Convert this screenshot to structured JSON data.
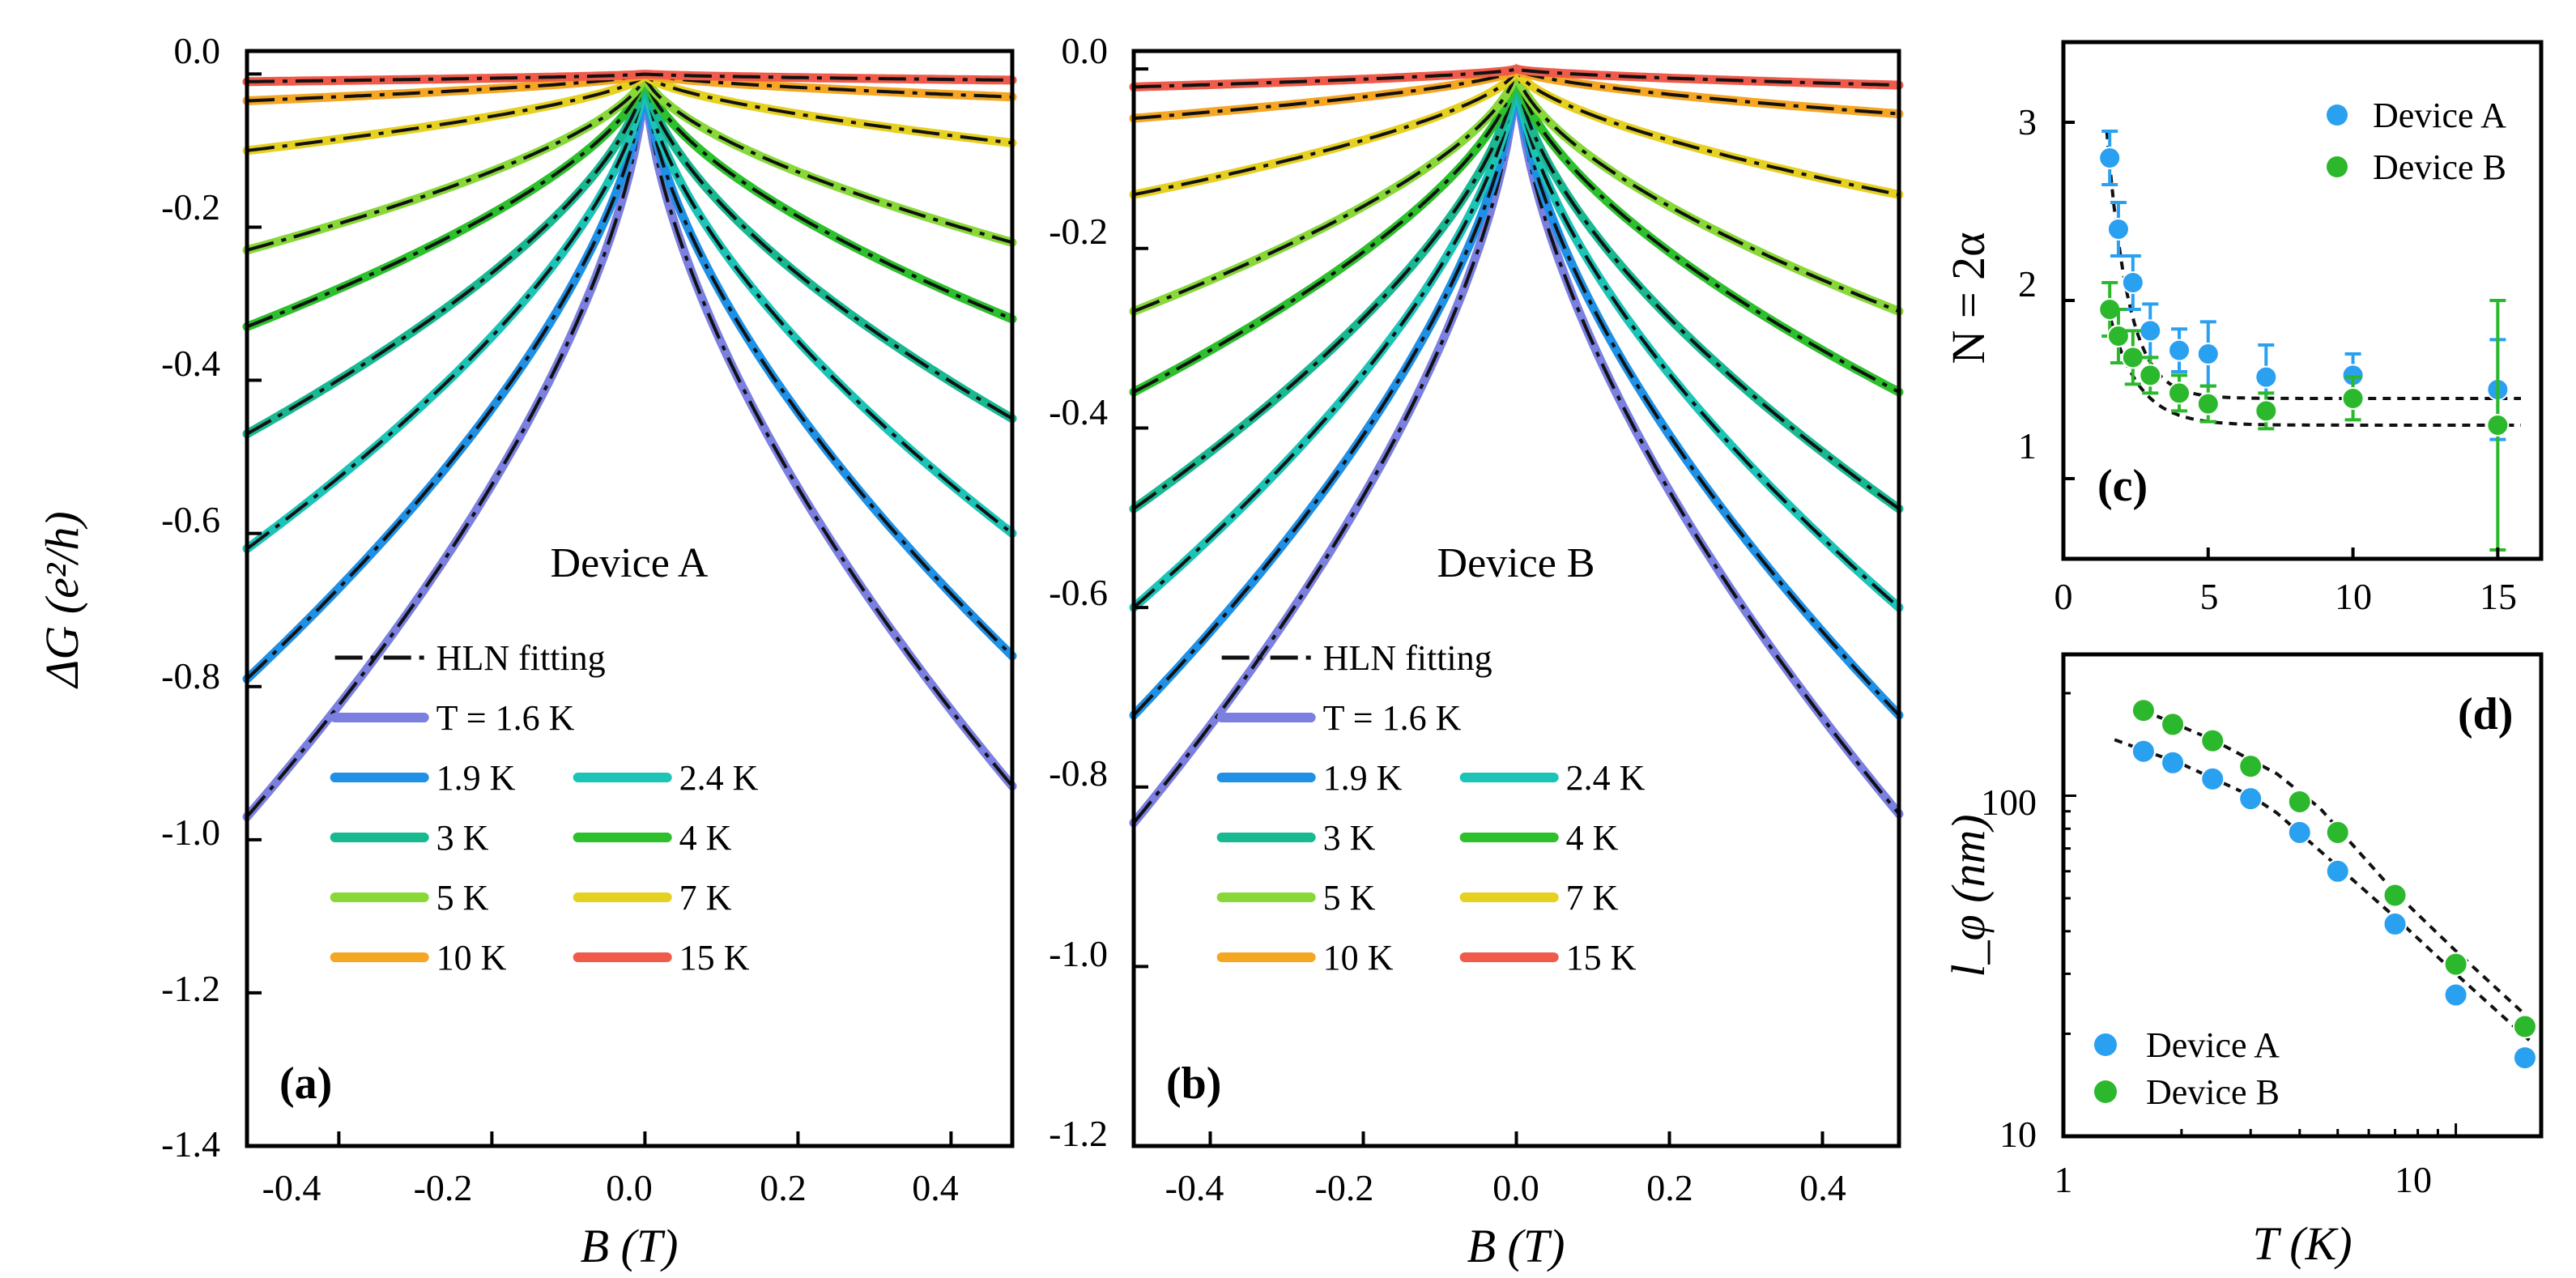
{
  "chart_data": [
    {
      "panel": "(a)",
      "type": "line",
      "annotation": "Device A",
      "xlabel": "B (T)",
      "ylabel": "ΔG (e²/h)",
      "xlim": [
        -0.52,
        0.48
      ],
      "ylim": [
        -1.4,
        0.03
      ],
      "xticks": [
        "-0.4",
        "-0.2",
        "0.0",
        "0.2",
        "0.4"
      ],
      "xtick_values": [
        -0.4,
        -0.2,
        0.0,
        0.2,
        0.4
      ],
      "yticks": [
        "0.0",
        "-0.2",
        "-0.4",
        "-0.6",
        "-0.8",
        "-1.0",
        "-1.2",
        "-1.4"
      ],
      "ytick_values": [
        0.0,
        -0.2,
        -0.4,
        -0.6,
        -0.8,
        -1.0,
        -1.2,
        -1.4
      ],
      "fit_label": "HLN fitting",
      "series": [
        {
          "name": "T = 1.6 K",
          "color": "#7b7fe0",
          "left": -0.97,
          "right": -0.93
        },
        {
          "name": "1.9 K",
          "color": "#1e90e6",
          "left": -0.79,
          "right": -0.76
        },
        {
          "name": "2.4 K",
          "color": "#1cc4b8",
          "left": -0.62,
          "right": -0.6
        },
        {
          "name": "3 K",
          "color": "#18b890",
          "left": -0.47,
          "right": -0.45
        },
        {
          "name": "4 K",
          "color": "#2cc02c",
          "left": -0.33,
          "right": -0.32
        },
        {
          "name": "5 K",
          "color": "#88d838",
          "left": -0.23,
          "right": -0.22
        },
        {
          "name": "7 K",
          "color": "#e6d020",
          "left": -0.1,
          "right": -0.09
        },
        {
          "name": "10 K",
          "color": "#f5a623",
          "left": -0.035,
          "right": -0.03
        },
        {
          "name": "15 K",
          "color": "#f05a4a",
          "left": -0.01,
          "right": -0.008
        }
      ]
    },
    {
      "panel": "(b)",
      "type": "line",
      "annotation": "Device B",
      "xlabel": "B (T)",
      "ylabel": "",
      "xlim": [
        -0.5,
        0.5
      ],
      "ylim": [
        -1.2,
        0.02
      ],
      "xticks": [
        "-0.4",
        "-0.2",
        "0.0",
        "0.2",
        "0.4"
      ],
      "xtick_values": [
        -0.4,
        -0.2,
        0.0,
        0.2,
        0.4
      ],
      "yticks": [
        "0.0",
        "-0.2",
        "-0.4",
        "-0.6",
        "-0.8",
        "-1.0",
        "-1.2"
      ],
      "ytick_values": [
        0.0,
        -0.2,
        -0.4,
        -0.6,
        -0.8,
        -1.0,
        -1.2
      ],
      "fit_label": "HLN fitting",
      "series": [
        {
          "name": "T = 1.6 K",
          "color": "#7b7fe0",
          "left": -0.84,
          "right": -0.83
        },
        {
          "name": "1.9 K",
          "color": "#1e90e6",
          "left": -0.72,
          "right": -0.72
        },
        {
          "name": "2.4 K",
          "color": "#1cc4b8",
          "left": -0.6,
          "right": -0.6
        },
        {
          "name": "3 K",
          "color": "#18b890",
          "left": -0.49,
          "right": -0.49
        },
        {
          "name": "4 K",
          "color": "#2cc02c",
          "left": -0.36,
          "right": -0.36
        },
        {
          "name": "5 K",
          "color": "#88d838",
          "left": -0.27,
          "right": -0.27
        },
        {
          "name": "7 K",
          "color": "#e6d020",
          "left": -0.14,
          "right": -0.14
        },
        {
          "name": "10 K",
          "color": "#f5a623",
          "left": -0.055,
          "right": -0.05
        },
        {
          "name": "15 K",
          "color": "#f05a4a",
          "left": -0.02,
          "right": -0.018
        }
      ]
    },
    {
      "panel": "(c)",
      "type": "scatter",
      "xlabel": "",
      "ylabel": "N = 2α",
      "xlim": [
        0,
        16.5
      ],
      "ylim": [
        0.55,
        3.45
      ],
      "xticks": [
        "0",
        "5",
        "10",
        "15"
      ],
      "xtick_values": [
        0,
        5,
        10,
        15
      ],
      "yticks": [
        "1",
        "2",
        "3"
      ],
      "ytick_values": [
        1,
        2,
        3
      ],
      "series": [
        {
          "name": "Device A",
          "color": "#2aa0f0",
          "x": [
            1.6,
            1.9,
            2.4,
            3,
            4,
            5,
            7,
            10,
            15
          ],
          "y": [
            2.8,
            2.4,
            2.1,
            1.83,
            1.72,
            1.7,
            1.57,
            1.58,
            1.5
          ],
          "err": [
            0.15,
            0.15,
            0.15,
            0.15,
            0.12,
            0.18,
            0.18,
            0.12,
            0.28
          ]
        },
        {
          "name": "Device B",
          "color": "#2cb82c",
          "x": [
            1.6,
            1.9,
            2.4,
            3,
            4,
            5,
            7,
            10,
            15
          ],
          "y": [
            1.95,
            1.8,
            1.68,
            1.58,
            1.48,
            1.42,
            1.38,
            1.45,
            1.3
          ],
          "err": [
            0.15,
            0.15,
            0.15,
            0.1,
            0.1,
            0.1,
            0.1,
            0.12,
            0.7
          ]
        }
      ],
      "fits": [
        {
          "a": 1.45,
          "b": 1.5,
          "t0": 0.75
        },
        {
          "a": 1.3,
          "b": 0.68,
          "t0": 1.0
        }
      ]
    },
    {
      "panel": "(d)",
      "type": "scatter",
      "xscale": "log",
      "yscale": "log",
      "xlabel": "T (K)",
      "ylabel": "l_φ (nm)",
      "xlim": [
        1,
        16.5
      ],
      "ylim": [
        10,
        260
      ],
      "xticks": [
        "1",
        "10"
      ],
      "xtick_values": [
        1,
        10
      ],
      "yticks": [
        "10",
        "100"
      ],
      "ytick_values": [
        10,
        100
      ],
      "series": [
        {
          "name": "Device A",
          "color": "#2aa0f0",
          "x": [
            1.6,
            1.9,
            2.4,
            3,
            4,
            5,
            7,
            10,
            15
          ],
          "y": [
            135,
            125,
            112,
            98,
            78,
            60,
            42,
            26,
            17
          ]
        },
        {
          "name": "Device B",
          "color": "#2cb82c",
          "x": [
            1.6,
            1.9,
            2.4,
            3,
            4,
            5,
            7,
            10,
            15
          ],
          "y": [
            178,
            162,
            145,
            122,
            96,
            78,
            51,
            32,
            21
          ]
        }
      ],
      "fits": [
        {
          "x": [
            1.35,
            2.0,
            3.0,
            3.5,
            5.0,
            7.0,
            10.0,
            15.5
          ],
          "y": [
            146,
            124,
            100,
            89,
            62,
            44,
            30,
            19
          ]
        },
        {
          "x": [
            1.6,
            2.4,
            3.5,
            4.5,
            7.0,
            10.0,
            15.5
          ],
          "y": [
            178,
            146,
            116,
            92,
            52,
            35,
            22
          ]
        }
      ]
    }
  ]
}
